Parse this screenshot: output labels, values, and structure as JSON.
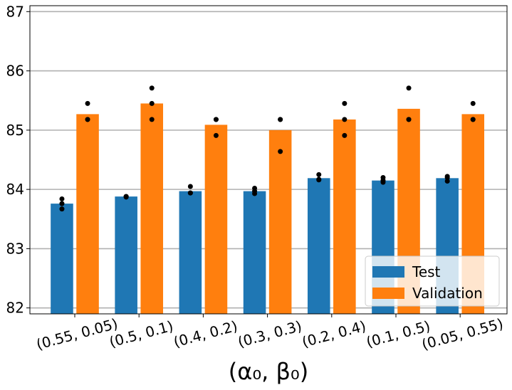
{
  "chart_data": {
    "type": "bar",
    "x_label": "(α₀, β₀)",
    "categories": [
      "(0.55, 0.05)",
      "(0.5, 0.1)",
      "(0.4, 0.2)",
      "(0.3, 0.3)",
      "(0.2, 0.4)",
      "(0.1, 0.5)",
      "(0.05, 0.55)"
    ],
    "series": [
      {
        "name": "Test",
        "color": "#1f77b4",
        "values": [
          83.76,
          83.88,
          83.97,
          83.97,
          84.19,
          84.15,
          84.19
        ],
        "points": [
          [
            83.84,
            83.76,
            83.67
          ],
          [
            83.88,
            83.88,
            83.87
          ],
          [
            84.05,
            83.94,
            83.94
          ],
          [
            84.02,
            83.97,
            83.93
          ],
          [
            84.25,
            84.17,
            84.16
          ],
          [
            84.2,
            84.15,
            84.12
          ],
          [
            84.22,
            84.2,
            84.14
          ]
        ]
      },
      {
        "name": "Validation",
        "color": "#ff7f0e",
        "values": [
          85.27,
          85.45,
          85.09,
          85.0,
          85.18,
          85.36,
          85.27
        ],
        "points": [
          [
            85.45,
            85.18,
            85.18
          ],
          [
            85.71,
            85.45,
            85.18
          ],
          [
            85.18,
            84.91,
            85.18
          ],
          [
            85.18,
            84.64,
            85.18
          ],
          [
            85.45,
            85.18,
            84.91
          ],
          [
            85.71,
            85.18,
            85.18
          ],
          [
            85.45,
            85.18,
            85.18
          ]
        ]
      }
    ],
    "point_color": "#000000",
    "ylim": [
      81.9,
      87.1
    ],
    "yticks": [
      82,
      83,
      84,
      85,
      86,
      87
    ],
    "grid": true,
    "legend": "lower right"
  }
}
